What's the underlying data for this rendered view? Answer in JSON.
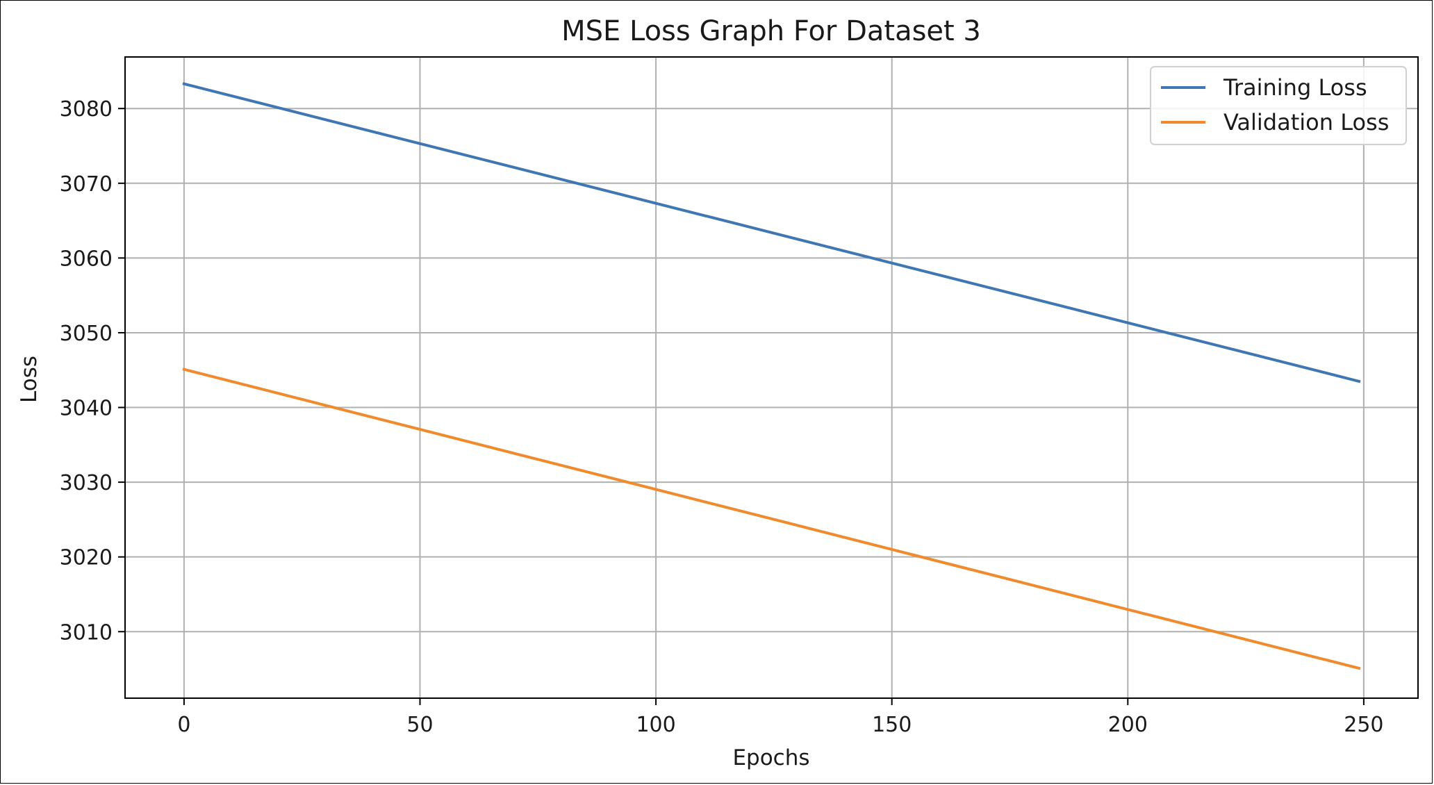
{
  "chart_data": {
    "type": "line",
    "title": "MSE Loss Graph For Dataset 3",
    "xlabel": "Epochs",
    "ylabel": "Loss",
    "xlim": [
      -12.5,
      261.5
    ],
    "ylim": [
      3001.1,
      3086.9
    ],
    "xticks": [
      0,
      50,
      100,
      150,
      200,
      250
    ],
    "yticks": [
      3010,
      3020,
      3030,
      3040,
      3050,
      3060,
      3070,
      3080
    ],
    "grid": true,
    "legend_position": "top-right",
    "series": [
      {
        "name": "Training Loss",
        "color": "#3f76b4",
        "x": [
          0,
          249
        ],
        "y": [
          3083.3,
          3043.5
        ]
      },
      {
        "name": "Validation Loss",
        "color": "#f08a2c",
        "x": [
          0,
          249
        ],
        "y": [
          3045.1,
          3005.1
        ]
      }
    ]
  }
}
